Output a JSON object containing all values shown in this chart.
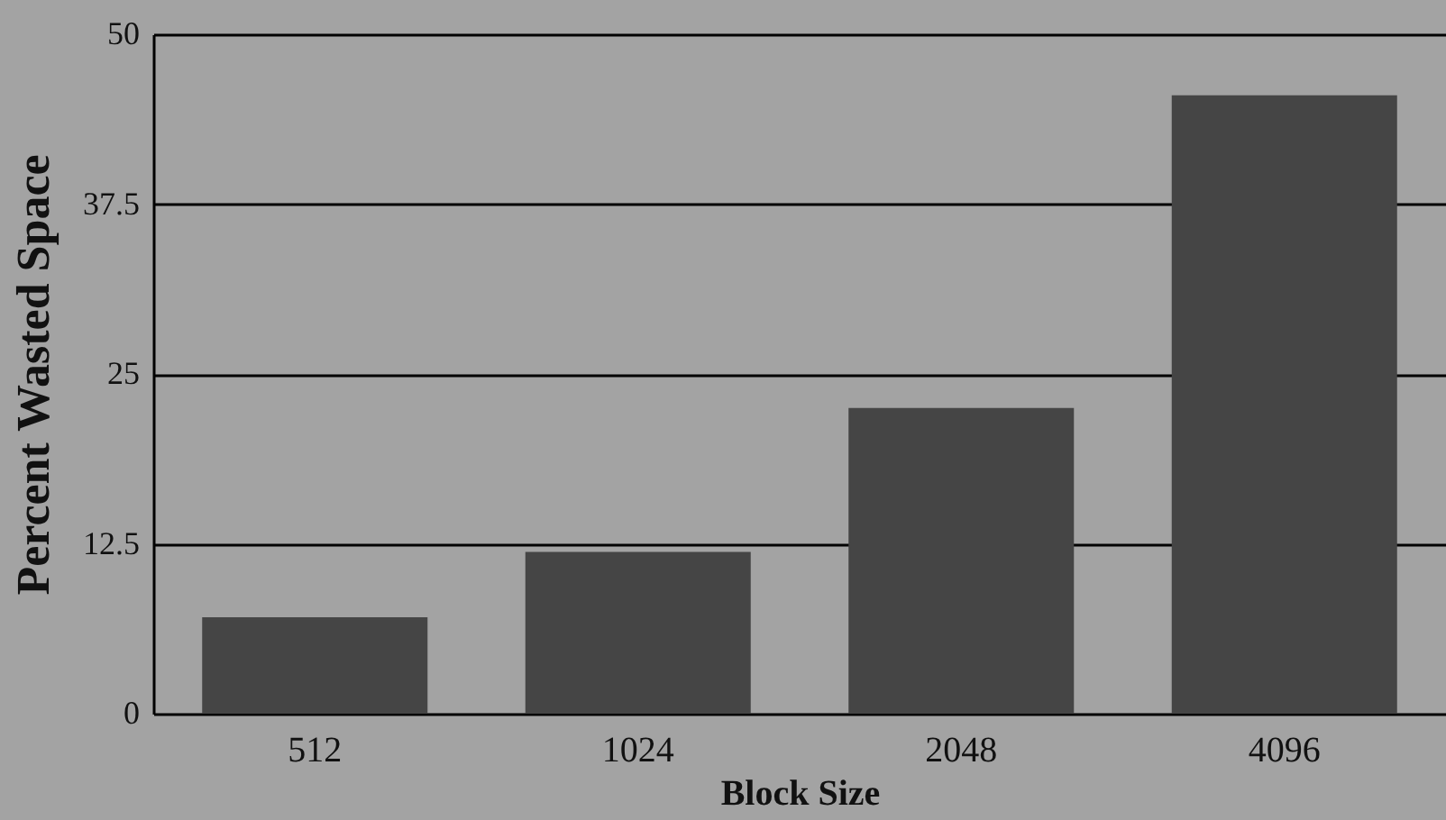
{
  "chart_data": {
    "type": "bar",
    "xlabel": "Block Size",
    "ylabel": "Percent  Wasted Space",
    "categories": [
      "512",
      "1024",
      "2048",
      "4096"
    ],
    "values": [
      7.1,
      11.9,
      22.5,
      45.5
    ],
    "color": "#454545",
    "ylim": [
      0,
      50
    ],
    "yticks": [
      0,
      12.5,
      25,
      37.5,
      50
    ],
    "grid": "y"
  }
}
